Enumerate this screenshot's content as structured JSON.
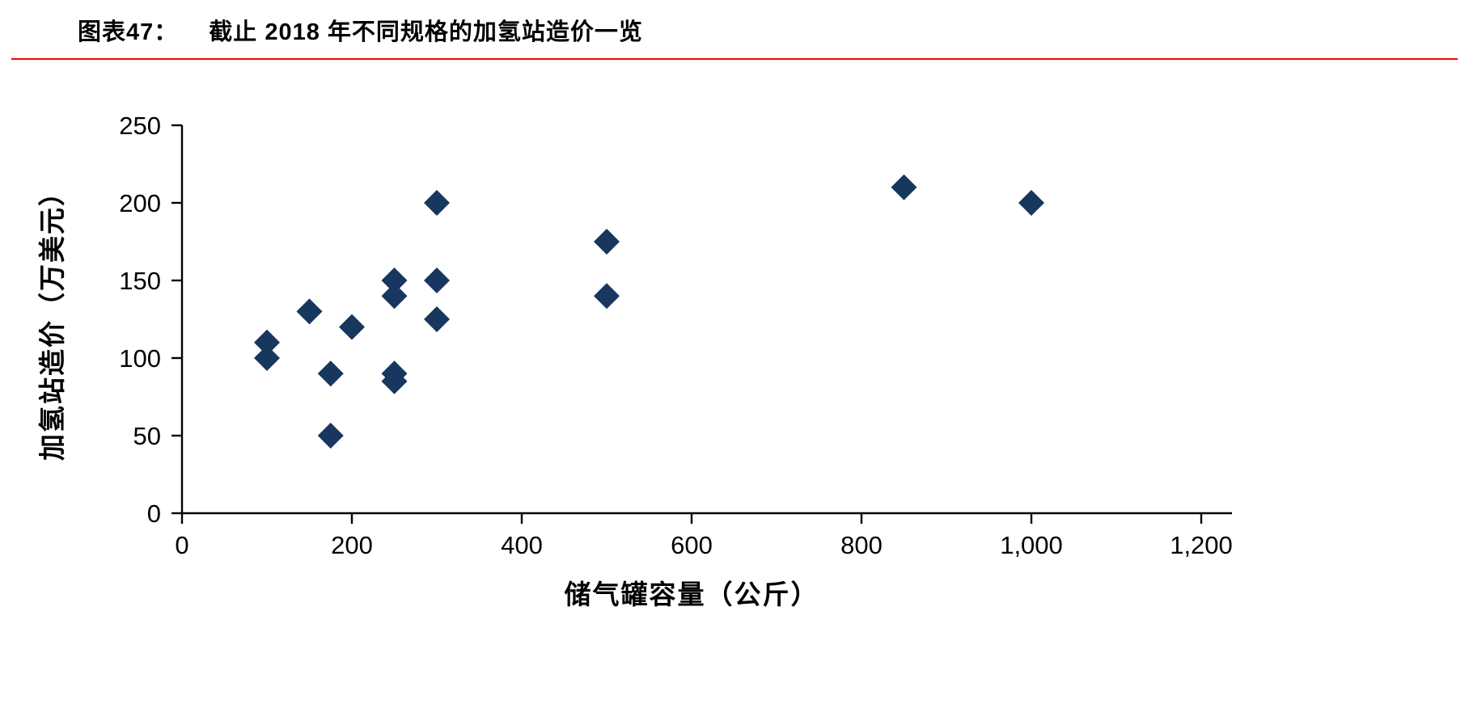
{
  "header": {
    "figure_label": "图表47：",
    "title": "截止 2018 年不同规格的加氢站造价一览",
    "rule_color": "#FF0000"
  },
  "chart_data": {
    "type": "scatter",
    "title": "截止 2018 年不同规格的加氢站造价一览",
    "xlabel": "储气罐容量（公斤）",
    "ylabel": "加氢站造价（万美元）",
    "xlim": [
      0,
      1200
    ],
    "ylim": [
      0,
      250
    ],
    "grid": false,
    "legend": "none",
    "x_ticks": {
      "values": [
        0,
        200,
        400,
        600,
        800,
        1000,
        1200
      ],
      "labels": [
        "0",
        "200",
        "400",
        "600",
        "800",
        "1,000",
        "1,200"
      ]
    },
    "y_ticks": {
      "values": [
        0,
        50,
        100,
        150,
        200,
        250
      ],
      "labels": [
        "0",
        "50",
        "100",
        "150",
        "200",
        "250"
      ]
    },
    "marker": {
      "shape": "diamond",
      "color": "#17375E",
      "size": 16
    },
    "axis_color": "#000000",
    "points": [
      {
        "x": 100,
        "y": 100
      },
      {
        "x": 100,
        "y": 110
      },
      {
        "x": 150,
        "y": 130
      },
      {
        "x": 175,
        "y": 50
      },
      {
        "x": 175,
        "y": 90
      },
      {
        "x": 200,
        "y": 120
      },
      {
        "x": 250,
        "y": 85
      },
      {
        "x": 250,
        "y": 90
      },
      {
        "x": 250,
        "y": 140
      },
      {
        "x": 250,
        "y": 150
      },
      {
        "x": 300,
        "y": 125
      },
      {
        "x": 300,
        "y": 150
      },
      {
        "x": 300,
        "y": 200
      },
      {
        "x": 500,
        "y": 140
      },
      {
        "x": 500,
        "y": 175
      },
      {
        "x": 850,
        "y": 210
      },
      {
        "x": 1000,
        "y": 200
      }
    ]
  }
}
